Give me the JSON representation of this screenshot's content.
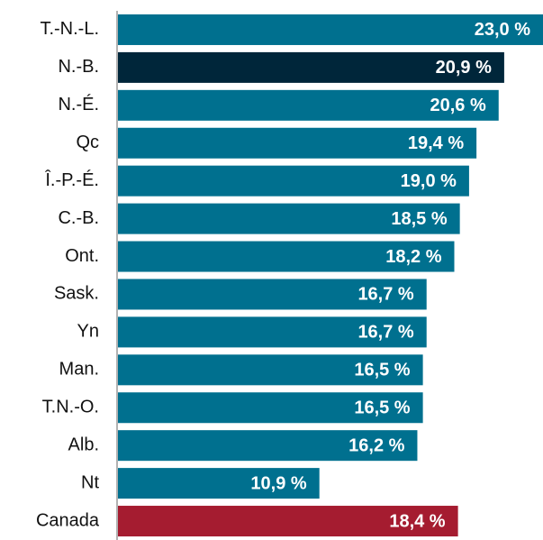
{
  "chart_data": {
    "type": "bar",
    "orientation": "horizontal",
    "categories": [
      "T.-N.-L.",
      "N.-B.",
      "N.-É.",
      "Qc",
      "Î.-P.-É.",
      "C.-B.",
      "Ont.",
      "Sask.",
      "Yn",
      "Man.",
      "T.N.-O.",
      "Alb.",
      "Nt",
      "Canada"
    ],
    "values": [
      23.0,
      20.9,
      20.6,
      19.4,
      19.0,
      18.5,
      18.2,
      16.7,
      16.7,
      16.5,
      16.5,
      16.2,
      10.9,
      18.4
    ],
    "value_labels": [
      "23,0 %",
      "20,9 %",
      "20,6 %",
      "19,4 %",
      "19,0 %",
      "18,5 %",
      "18,2 %",
      "16,7 %",
      "16,7 %",
      "16,5 %",
      "16,5 %",
      "16,2 %",
      "10,9 %",
      "18,4 %"
    ],
    "colors": [
      "#00708f",
      "#00263a",
      "#00708f",
      "#00708f",
      "#00708f",
      "#00708f",
      "#00708f",
      "#00708f",
      "#00708f",
      "#00708f",
      "#00708f",
      "#00708f",
      "#00708f",
      "#a51c30"
    ]
  }
}
